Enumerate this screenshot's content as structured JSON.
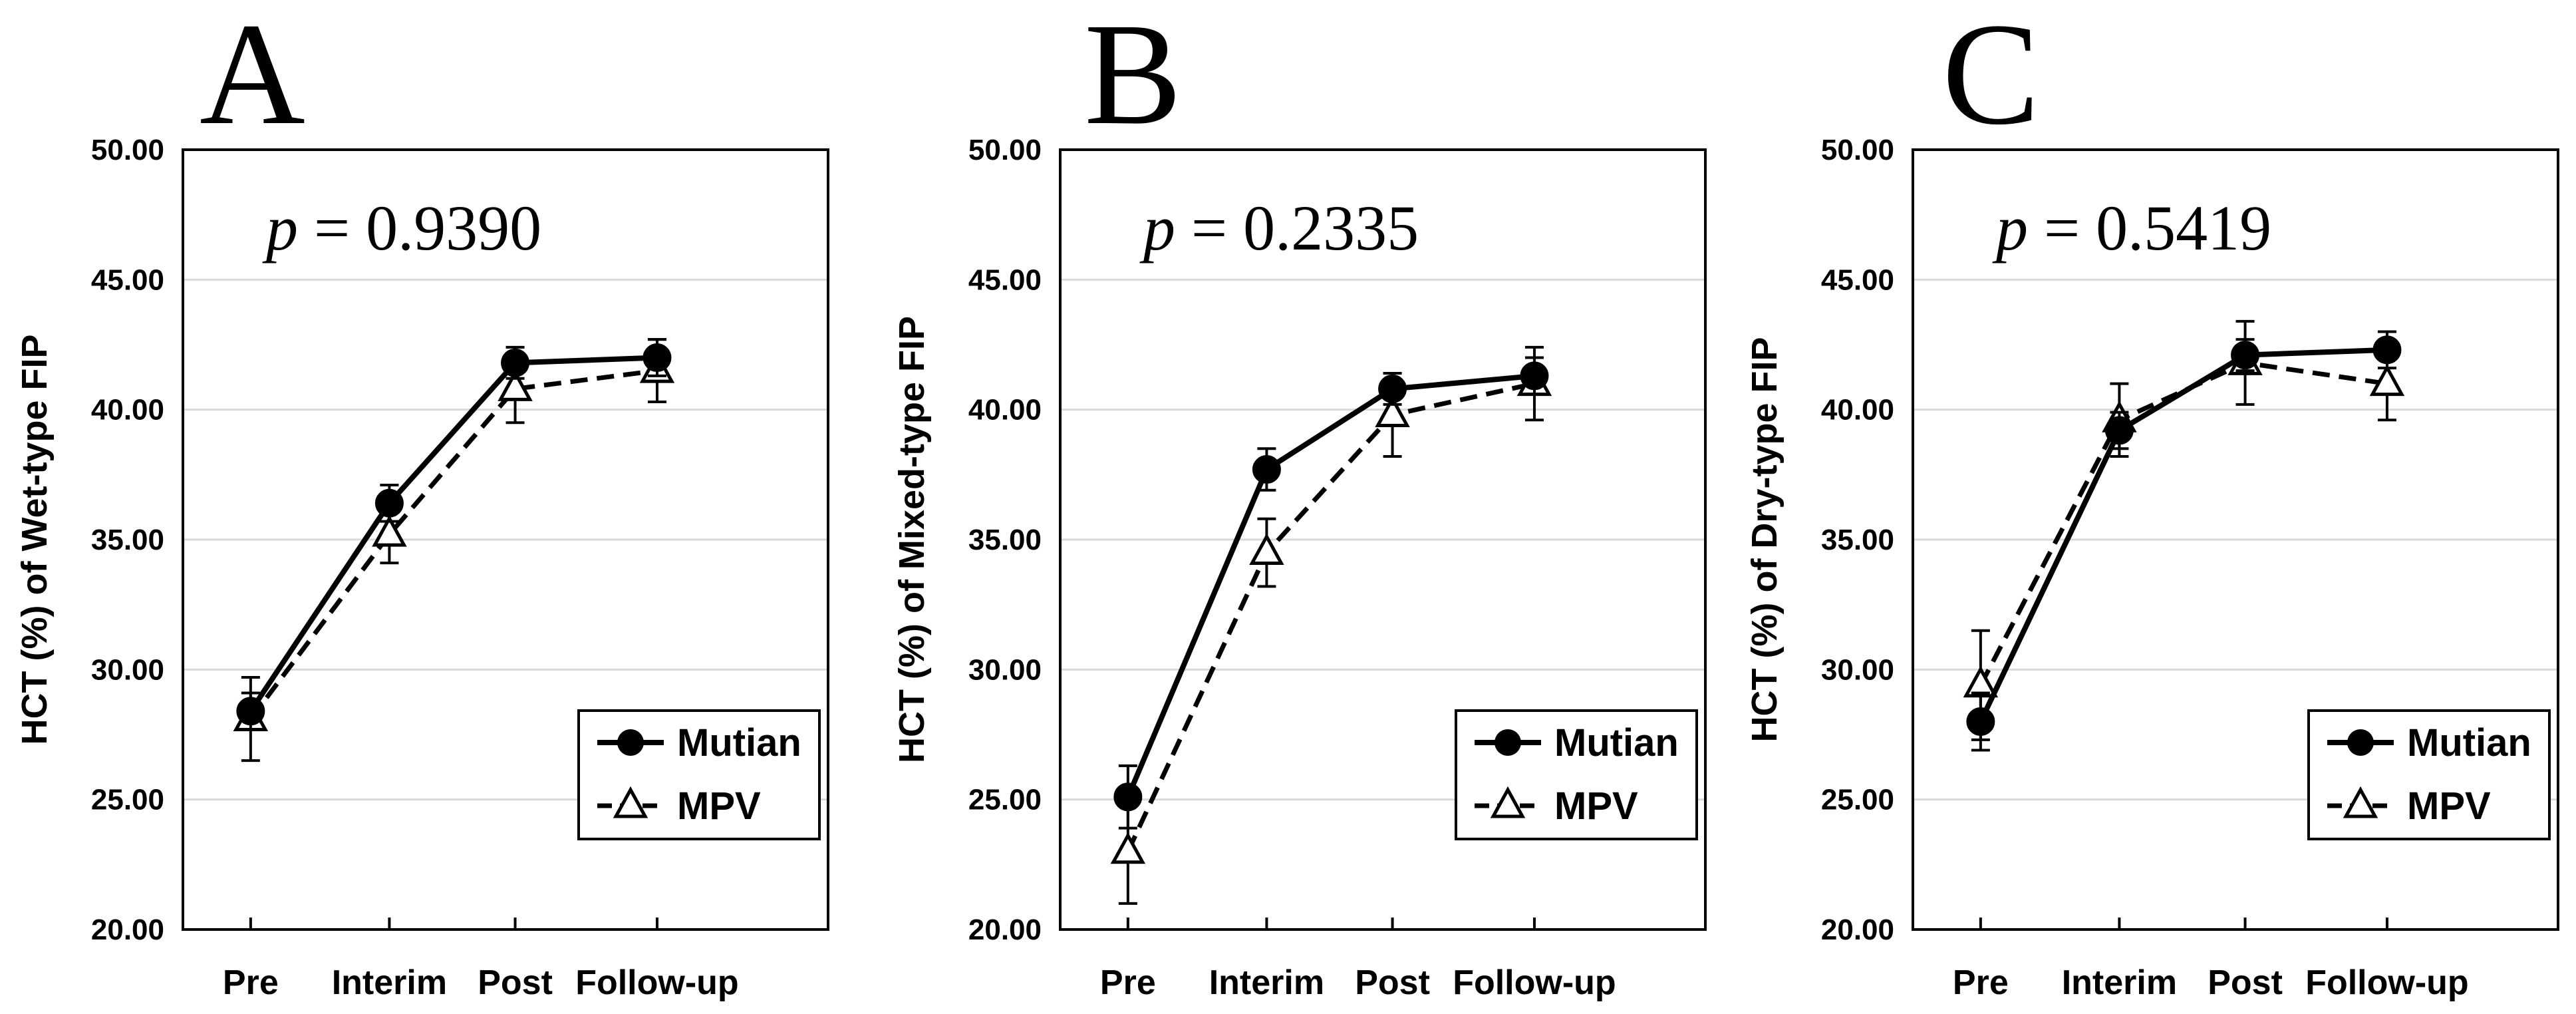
{
  "chart_data": [
    {
      "type": "line",
      "panel": "A",
      "pvalue_label": "p",
      "pvalue_text": " = 0.9390",
      "ylabel": "HCT (%) of Wet-type FIP",
      "xlabel": "",
      "categories": [
        "Pre",
        "Interim",
        "Post",
        "Follow-up"
      ],
      "ylim": [
        20,
        50
      ],
      "yticks": [
        "20.00",
        "25.00",
        "30.00",
        "35.00",
        "40.00",
        "45.00",
        "50.00"
      ],
      "series": [
        {
          "name": "Mutian",
          "values": [
            28.4,
            36.4,
            41.8,
            42.0
          ],
          "errors": [
            0.7,
            0.7,
            0.6,
            0.7
          ],
          "line": "solid",
          "marker": "circle"
        },
        {
          "name": "MPV",
          "values": [
            28.1,
            35.2,
            40.8,
            41.5
          ],
          "errors": [
            1.6,
            1.1,
            1.3,
            1.2
          ],
          "line": "dashed",
          "marker": "triangle"
        }
      ]
    },
    {
      "type": "line",
      "panel": "B",
      "pvalue_label": "p",
      "pvalue_text": " = 0.2335",
      "ylabel": "HCT (%) of Mixed-type FIP",
      "xlabel": "",
      "categories": [
        "Pre",
        "Interim",
        "Post",
        "Follow-up"
      ],
      "ylim": [
        20,
        50
      ],
      "yticks": [
        "20.00",
        "25.00",
        "30.00",
        "35.00",
        "40.00",
        "45.00",
        "50.00"
      ],
      "series": [
        {
          "name": "Mutian",
          "values": [
            25.1,
            37.7,
            40.8,
            41.3
          ],
          "errors": [
            1.2,
            0.8,
            0.6,
            0.7
          ],
          "line": "solid",
          "marker": "circle"
        },
        {
          "name": "MPV",
          "values": [
            23.0,
            34.5,
            39.8,
            41.0
          ],
          "errors": [
            2.0,
            1.3,
            1.6,
            1.4
          ],
          "line": "dashed",
          "marker": "triangle"
        }
      ]
    },
    {
      "type": "line",
      "panel": "C",
      "pvalue_label": "p",
      "pvalue_text": " = 0.5419",
      "ylabel": "HCT (%) of Dry-type FIP",
      "xlabel": "",
      "categories": [
        "Pre",
        "Interim",
        "Post",
        "Follow-up"
      ],
      "ylim": [
        20,
        50
      ],
      "yticks": [
        "20.00",
        "25.00",
        "30.00",
        "35.00",
        "40.00",
        "45.00",
        "50.00"
      ],
      "series": [
        {
          "name": "Mutian",
          "values": [
            28.0,
            39.2,
            42.1,
            42.3
          ],
          "errors": [
            1.1,
            0.7,
            0.6,
            0.7
          ],
          "line": "solid",
          "marker": "circle"
        },
        {
          "name": "MPV",
          "values": [
            29.4,
            39.6,
            41.8,
            41.0
          ],
          "errors": [
            2.1,
            1.4,
            1.6,
            1.4
          ],
          "line": "dashed",
          "marker": "triangle"
        }
      ]
    }
  ]
}
